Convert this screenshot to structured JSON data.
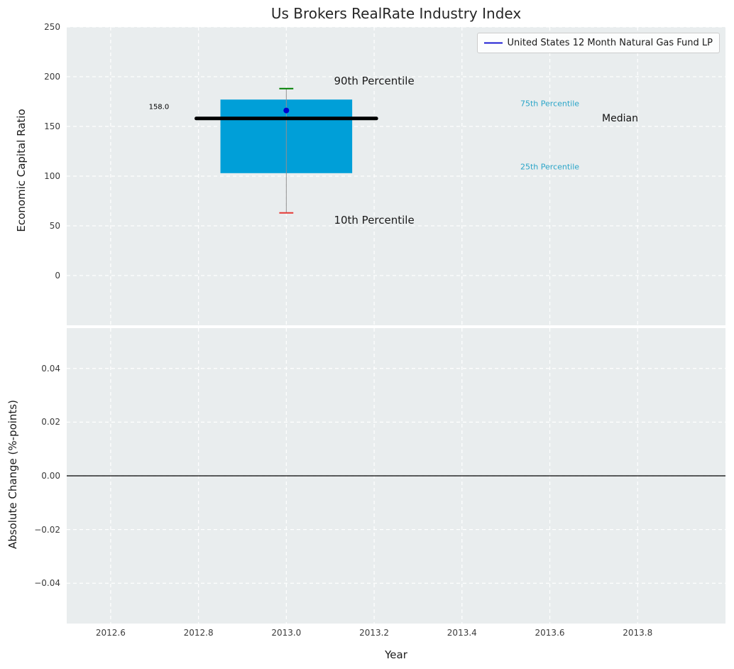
{
  "figure": {
    "background": "#ffffff",
    "panel_background": "#e9edee",
    "grid_color": "#ffffff",
    "tick_label_color": "#3b3b3b",
    "title_color": "#262626"
  },
  "chart_data": {
    "type": "box",
    "title": "Us Brokers RealRate Industry Index",
    "xlabel": "Year",
    "xlim": [
      2012.5,
      2014.0
    ],
    "xticks": [
      "2012.6",
      "2012.8",
      "2013.0",
      "2013.2",
      "2013.4",
      "2013.6",
      "2013.8"
    ],
    "xtick_values": [
      2012.6,
      2012.8,
      2013.0,
      2013.2,
      2013.4,
      2013.6,
      2013.8
    ],
    "grid": true,
    "legend_position": "upper right",
    "legend": [
      {
        "label": "United States 12 Month Natural Gas Fund LP",
        "color": "#0000cd"
      }
    ],
    "panels": [
      {
        "ylabel": "Economic Capital Ratio",
        "ylim": [
          -50,
          250
        ],
        "ytick_values": [
          0,
          50,
          100,
          150,
          200,
          250
        ],
        "ytick_labels": [
          "0",
          "50",
          "100",
          "150",
          "200",
          "250"
        ],
        "boxplot": {
          "x": 2013.0,
          "p10": 63,
          "p25": 103,
          "median": 158.0,
          "p75": 177,
          "p90": 188,
          "mean_point": 166,
          "box_x_range": [
            2012.85,
            2013.15
          ],
          "median_x_range": [
            2012.795,
            2013.205
          ],
          "cap_half_width": 0.016,
          "box_color": "#009fd8",
          "median_color": "#000000",
          "whisker_color": "#909090",
          "cap_top_color": "#008000",
          "cap_bottom_color": "#e53935",
          "point_color": "#0000cd"
        },
        "annotations": [
          {
            "text": "158.0",
            "x": 2012.71,
            "y": 169,
            "color": "#000000",
            "size": 10
          },
          {
            "text": "90th Percentile",
            "x": 2013.2,
            "y": 196,
            "color": "#1a1a1a",
            "size": 15
          },
          {
            "text": "10th Percentile",
            "x": 2013.2,
            "y": 56,
            "color": "#1a1a1a",
            "size": 15
          },
          {
            "text": "75th Percentile",
            "x": 2013.6,
            "y": 173,
            "color": "#2aa5c8",
            "size": 11
          },
          {
            "text": "25th Percentile",
            "x": 2013.6,
            "y": 109,
            "color": "#2aa5c8",
            "size": 11
          },
          {
            "text": "Median",
            "x": 2013.76,
            "y": 158,
            "color": "#111111",
            "size": 14
          }
        ]
      },
      {
        "ylabel": "Absolute Change (%-points)",
        "ylim": [
          -0.055,
          0.055
        ],
        "ytick_values": [
          0.04,
          0.02,
          0.0,
          -0.02,
          -0.04
        ],
        "ytick_labels": [
          "0.04",
          "0.02",
          "0.00",
          "−0.02",
          "−0.04"
        ],
        "hline": {
          "y": 0,
          "color": "#000000"
        }
      }
    ]
  }
}
